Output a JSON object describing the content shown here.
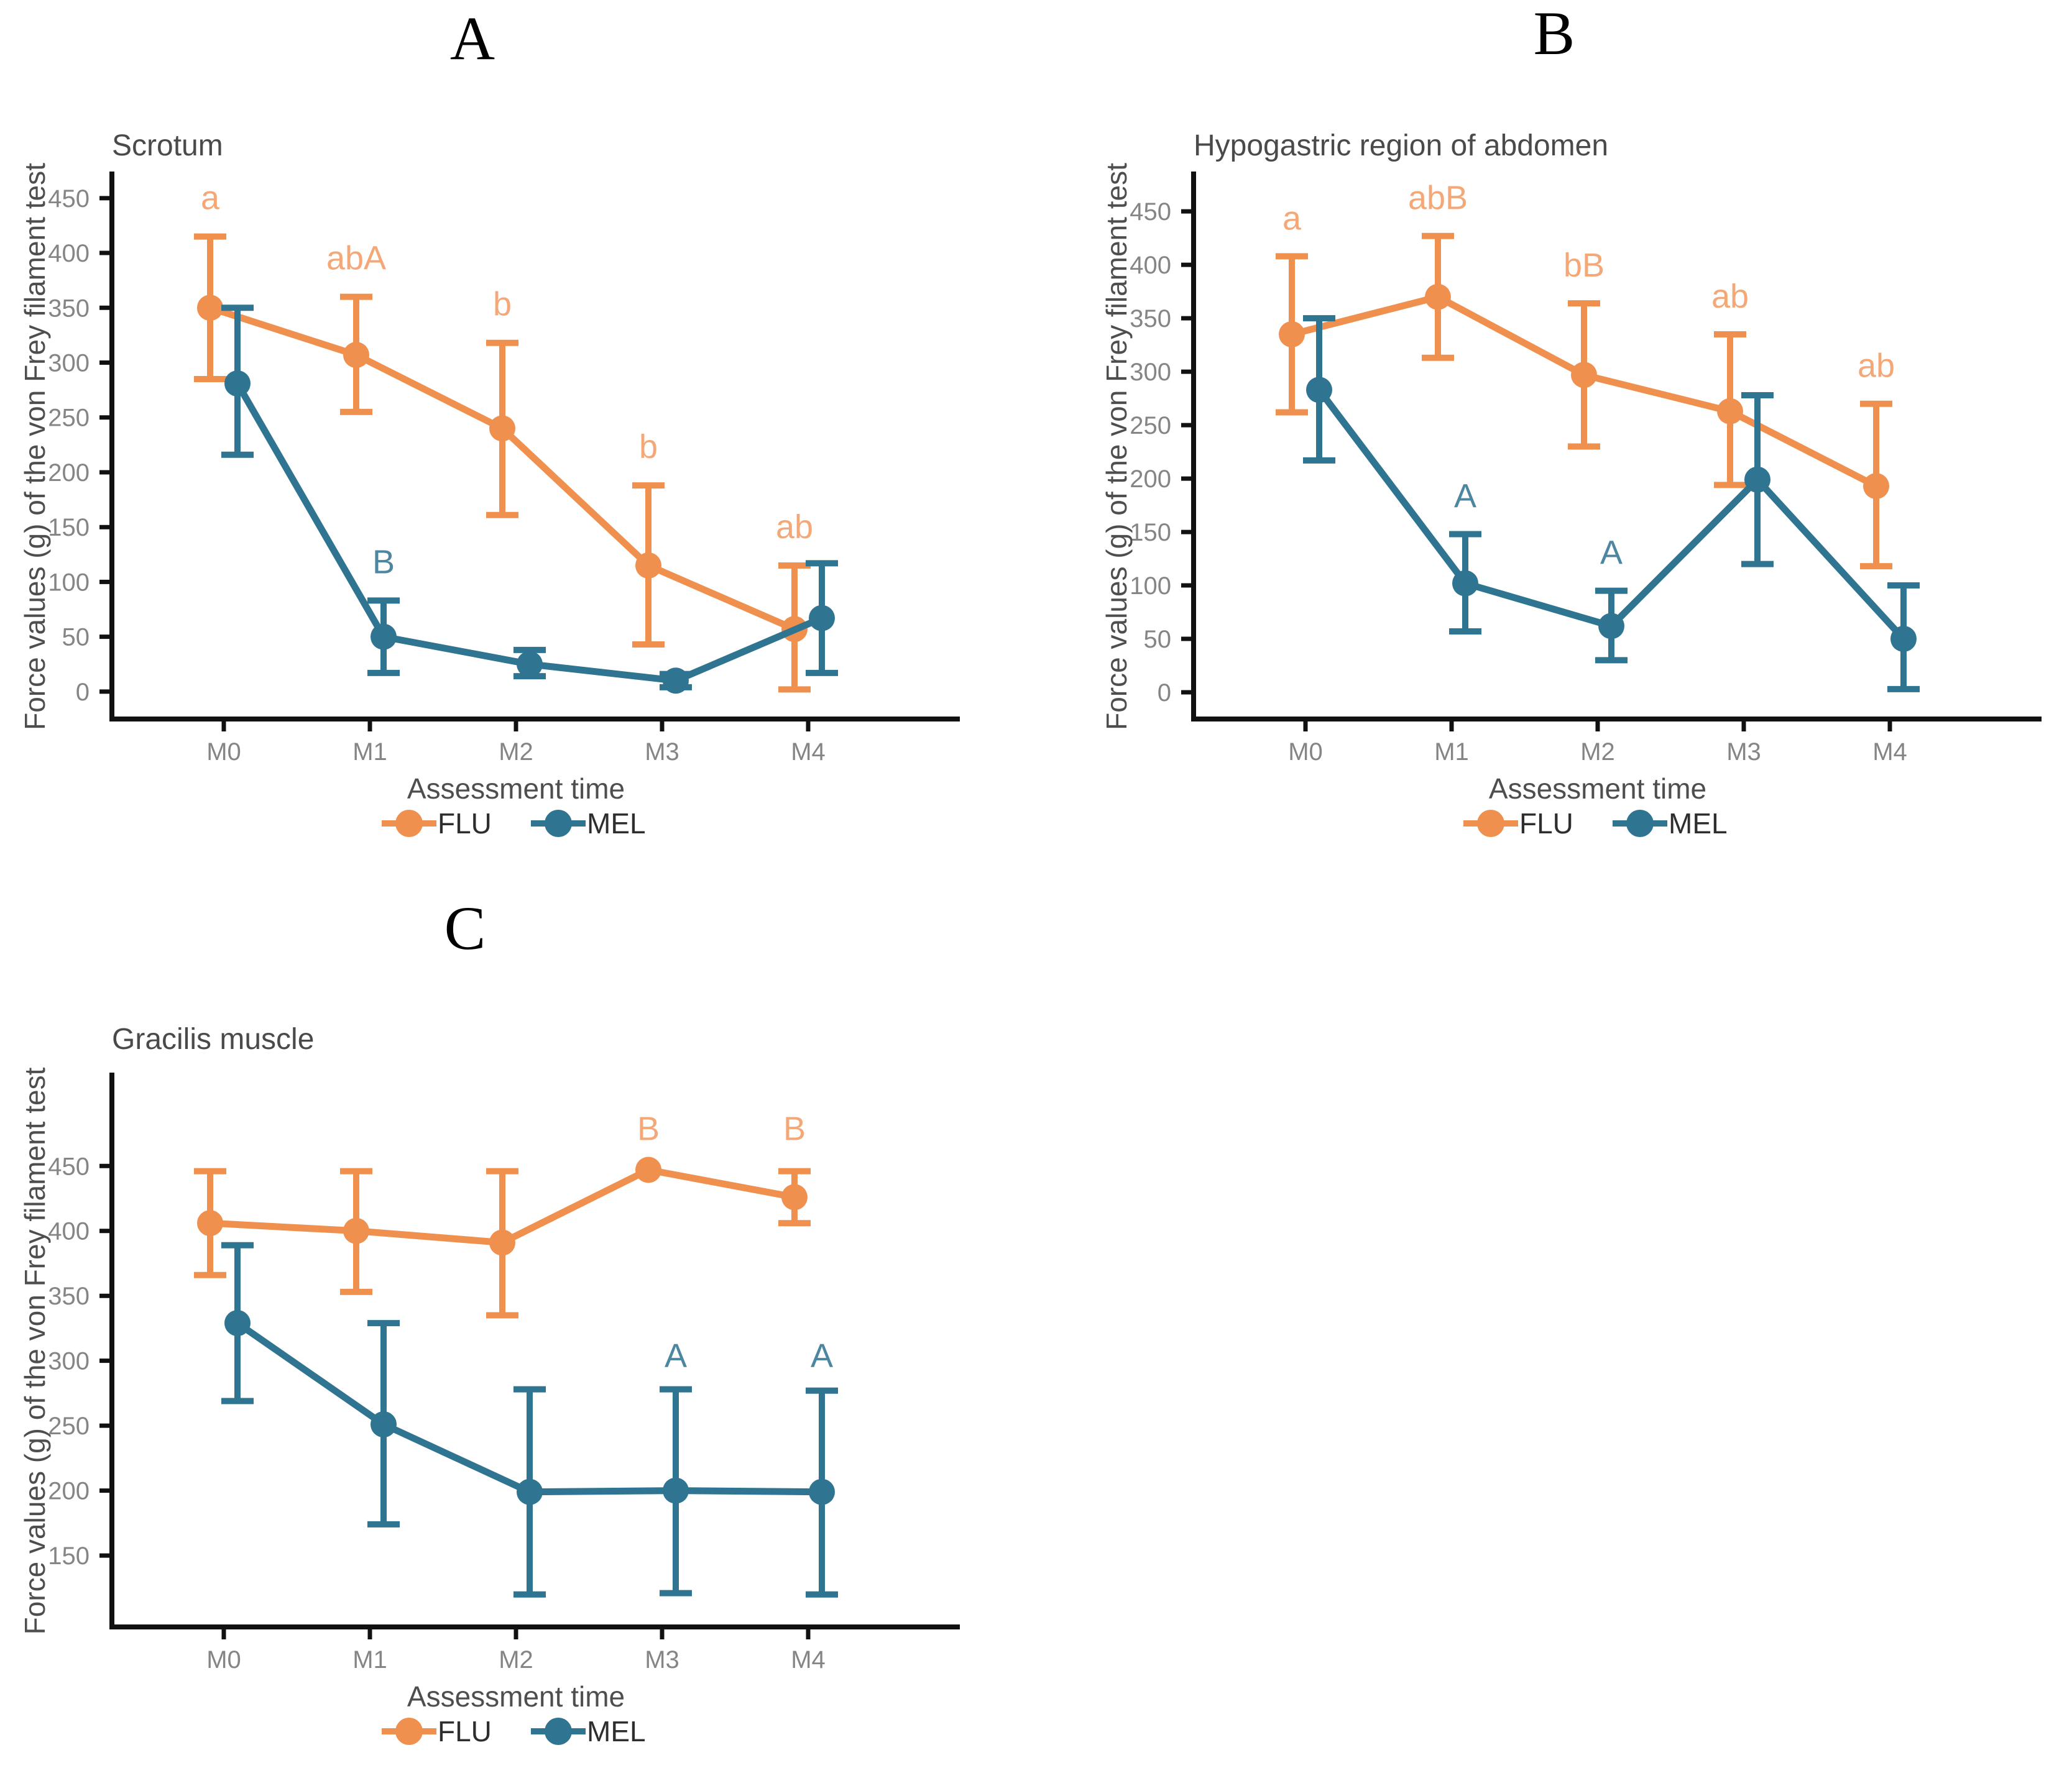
{
  "page": {
    "background": "#ffffff"
  },
  "theme": {
    "axis_color": "#111111",
    "tick_label_color": "#858585",
    "axis_title_color": "#4e4e4e",
    "panel_title_color": "#4a4a4a",
    "legend_text_color": "#2e2e2e",
    "panel_letter_color": "#000000"
  },
  "chart_data": [
    {
      "type": "line",
      "panel_label": "A",
      "title": "Scrotum",
      "xlabel": "Assessment time",
      "ylabel": "Force values (g) of the von Frey filament test",
      "categories": [
        "M0",
        "M1",
        "M2",
        "M3",
        "M4"
      ],
      "yticks": [
        0,
        50,
        100,
        150,
        200,
        250,
        300,
        350,
        400,
        450
      ],
      "ylim": [
        -25,
        472
      ],
      "grid": false,
      "legend_position": "bottom",
      "series": [
        {
          "name": "FLU",
          "color": "#F0904E",
          "annotation_color": "#F4A878",
          "values": [
            350,
            307,
            240,
            115,
            57
          ],
          "err_lo": [
            285,
            255,
            161,
            43,
            2
          ],
          "err_hi": [
            415,
            360,
            318,
            188,
            115
          ]
        },
        {
          "name": "MEL",
          "color": "#2F7490",
          "annotation_color": "#4C86A0",
          "values": [
            281,
            50,
            25,
            10,
            67
          ],
          "err_lo": [
            216,
            17,
            14,
            4,
            17
          ],
          "err_hi": [
            350,
            83,
            38,
            16,
            117
          ]
        }
      ],
      "annotations": [
        {
          "series": "FLU",
          "x": "M0",
          "y": 440,
          "text": "a"
        },
        {
          "series": "FLU",
          "x": "M1",
          "y": 385,
          "text": "abA"
        },
        {
          "series": "FLU",
          "x": "M2",
          "y": 343,
          "text": "b"
        },
        {
          "series": "FLU",
          "x": "M3",
          "y": 213,
          "text": "b"
        },
        {
          "series": "FLU",
          "x": "M4",
          "y": 140,
          "text": "ab"
        },
        {
          "series": "MEL",
          "x": "M1",
          "y": 108,
          "text": "B"
        }
      ]
    },
    {
      "type": "line",
      "panel_label": "B",
      "title": "Hypogastric region of abdomen",
      "xlabel": "Assessment time",
      "ylabel": "Force values (g) of the von Frey filament test",
      "categories": [
        "M0",
        "M1",
        "M2",
        "M3",
        "M4"
      ],
      "yticks": [
        0,
        50,
        100,
        150,
        200,
        250,
        300,
        350,
        400,
        450
      ],
      "ylim": [
        -25,
        485
      ],
      "grid": false,
      "legend_position": "bottom",
      "series": [
        {
          "name": "FLU",
          "color": "#F0904E",
          "annotation_color": "#F4A878",
          "values": [
            335,
            370,
            297,
            263,
            193
          ],
          "err_lo": [
            262,
            313,
            230,
            194,
            118
          ],
          "err_hi": [
            408,
            427,
            364,
            335,
            270
          ]
        },
        {
          "name": "MEL",
          "color": "#2F7490",
          "annotation_color": "#4C86A0",
          "values": [
            283,
            102,
            62,
            199,
            50
          ],
          "err_lo": [
            217,
            57,
            30,
            120,
            3
          ],
          "err_hi": [
            350,
            148,
            95,
            278,
            100
          ]
        }
      ],
      "annotations": [
        {
          "series": "FLU",
          "x": "M0",
          "y": 433,
          "text": "a"
        },
        {
          "series": "FLU",
          "x": "M1",
          "y": 452,
          "text": "abB"
        },
        {
          "series": "FLU",
          "x": "M2",
          "y": 389,
          "text": "bB"
        },
        {
          "series": "FLU",
          "x": "M3",
          "y": 360,
          "text": "ab"
        },
        {
          "series": "FLU",
          "x": "M4",
          "y": 295,
          "text": "ab"
        },
        {
          "series": "MEL",
          "x": "M1",
          "y": 173,
          "text": "A"
        },
        {
          "series": "MEL",
          "x": "M2",
          "y": 120,
          "text": "A"
        }
      ]
    },
    {
      "type": "line",
      "panel_label": "C",
      "title": "Gracilis muscle",
      "xlabel": "Assessment time",
      "ylabel": "Force values (g) of the von Frey filament test",
      "categories": [
        "M0",
        "M1",
        "M2",
        "M3",
        "M4"
      ],
      "yticks": [
        150,
        200,
        250,
        300,
        350,
        400,
        450
      ],
      "ylim": [
        95,
        520
      ],
      "grid": false,
      "legend_position": "bottom",
      "series": [
        {
          "name": "FLU",
          "color": "#F0904E",
          "annotation_color": "#F4A878",
          "values": [
            406,
            400,
            391,
            447,
            426
          ],
          "err_lo": [
            366,
            353,
            335,
            447,
            406
          ],
          "err_hi": [
            446,
            446,
            446,
            447,
            446
          ]
        },
        {
          "name": "MEL",
          "color": "#2F7490",
          "annotation_color": "#4C86A0",
          "values": [
            329,
            251,
            199,
            200,
            199
          ],
          "err_lo": [
            269,
            174,
            120,
            121,
            120
          ],
          "err_hi": [
            389,
            329,
            278,
            278,
            277
          ]
        }
      ],
      "annotations": [
        {
          "series": "FLU",
          "x": "M3",
          "y": 470,
          "text": "B"
        },
        {
          "series": "FLU",
          "x": "M4",
          "y": 470,
          "text": "B"
        },
        {
          "series": "MEL",
          "x": "M3",
          "y": 295,
          "text": "A"
        },
        {
          "series": "MEL",
          "x": "M4",
          "y": 295,
          "text": "A"
        }
      ]
    }
  ]
}
